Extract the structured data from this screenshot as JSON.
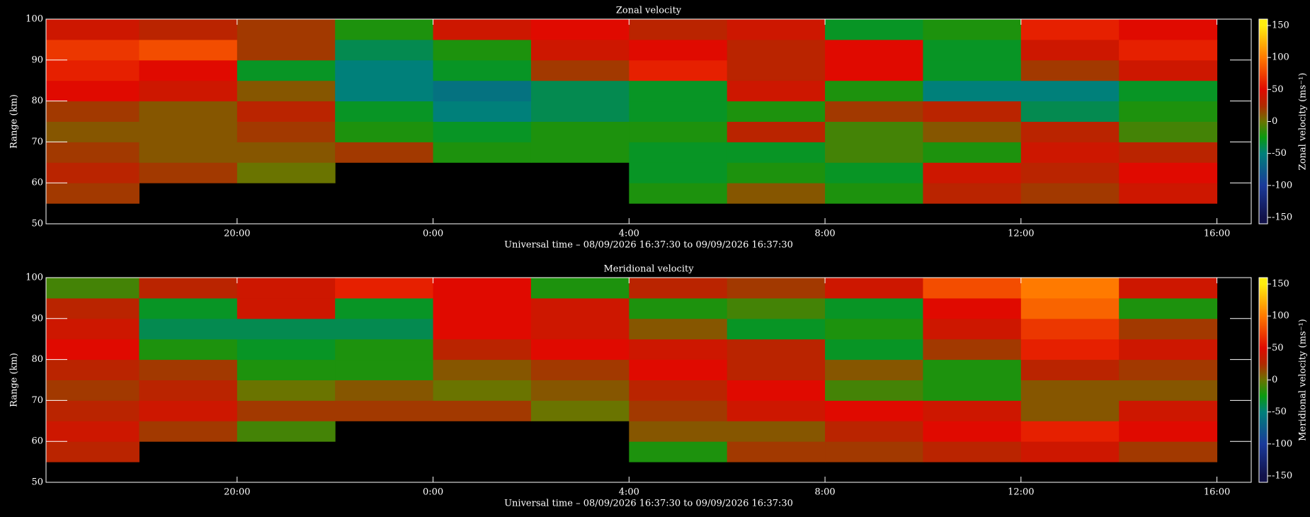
{
  "chart_data": [
    {
      "type": "heatmap",
      "title": "Zonal velocity",
      "xlabel": "Universal time – 08/09/2026 16:37:30 to 09/09/2026 16:37:30",
      "ylabel": "Range (km)",
      "clabel": "Zonal velocity (ms⁻¹)",
      "x": [
        17,
        19,
        21,
        23,
        25,
        27,
        29,
        31,
        33,
        35,
        37,
        39
      ],
      "y": [
        52.5,
        57.5,
        62.5,
        67.5,
        72.5,
        77.5,
        82.5,
        87.5,
        92.5,
        97.5
      ],
      "z": [
        [
          null,
          null,
          null,
          null,
          null,
          null,
          null,
          null,
          null,
          null,
          null,
          null
        ],
        [
          20,
          null,
          null,
          null,
          null,
          null,
          -20,
          10,
          -20,
          30,
          20,
          40
        ],
        [
          30,
          20,
          0,
          null,
          null,
          null,
          -30,
          -20,
          -30,
          40,
          30,
          50
        ],
        [
          20,
          10,
          10,
          20,
          -20,
          -20,
          -30,
          -30,
          -10,
          -20,
          40,
          30
        ],
        [
          10,
          10,
          20,
          -20,
          -30,
          -20,
          -20,
          30,
          -10,
          10,
          30,
          -10
        ],
        [
          20,
          10,
          30,
          -30,
          -50,
          -40,
          -30,
          -20,
          20,
          30,
          -40,
          -20
        ],
        [
          50,
          40,
          10,
          -50,
          -60,
          -40,
          -30,
          40,
          -20,
          -50,
          -50,
          -30
        ],
        [
          60,
          50,
          -30,
          -50,
          -30,
          20,
          60,
          30,
          50,
          -30,
          20,
          40
        ],
        [
          70,
          80,
          20,
          -40,
          -20,
          40,
          50,
          30,
          50,
          -30,
          40,
          60
        ],
        [
          40,
          30,
          20,
          -20,
          40,
          50,
          30,
          40,
          -30,
          -20,
          60,
          50
        ]
      ],
      "xlim": [
        16.1,
        40.7
      ],
      "xticks": [
        {
          "value": 20,
          "label": "20:00"
        },
        {
          "value": 24,
          "label": "0:00"
        },
        {
          "value": 28,
          "label": "4:00"
        },
        {
          "value": 32,
          "label": "8:00"
        },
        {
          "value": 36,
          "label": "12:00"
        },
        {
          "value": 40,
          "label": "16:00"
        }
      ],
      "ylim": [
        50,
        100
      ],
      "yticks": [
        50,
        60,
        70,
        80,
        90,
        100
      ],
      "clim": [
        -160,
        160
      ],
      "cticks": [
        -150,
        -100,
        -50,
        0,
        50,
        100,
        150
      ],
      "colorscale": [
        [
          -150,
          "#12124a"
        ],
        [
          -100,
          "#1a3a9a"
        ],
        [
          -50,
          "#00807a"
        ],
        [
          -25,
          "#0a9a10"
        ],
        [
          0,
          "#6a7400"
        ],
        [
          25,
          "#b02a00"
        ],
        [
          50,
          "#e00a00"
        ],
        [
          100,
          "#ff7a00"
        ],
        [
          150,
          "#ffee10"
        ]
      ]
    },
    {
      "type": "heatmap",
      "title": "Meridional velocity",
      "xlabel": "Universal time – 08/09/2026 16:37:30 to 09/09/2026 16:37:30",
      "ylabel": "Range (km)",
      "clabel": "Meridional velocity (ms⁻¹)",
      "x": [
        17,
        19,
        21,
        23,
        25,
        27,
        29,
        31,
        33,
        35,
        37,
        39
      ],
      "y": [
        52.5,
        57.5,
        62.5,
        67.5,
        72.5,
        77.5,
        82.5,
        87.5,
        92.5,
        97.5
      ],
      "z": [
        [
          null,
          null,
          null,
          null,
          null,
          null,
          null,
          null,
          null,
          null,
          null,
          null
        ],
        [
          30,
          null,
          null,
          null,
          null,
          null,
          -20,
          20,
          20,
          30,
          40,
          20
        ],
        [
          40,
          20,
          -10,
          null,
          null,
          null,
          10,
          10,
          30,
          50,
          60,
          50
        ],
        [
          30,
          40,
          20,
          20,
          20,
          0,
          20,
          40,
          50,
          40,
          10,
          40
        ],
        [
          20,
          30,
          0,
          10,
          0,
          10,
          30,
          50,
          -10,
          -20,
          10,
          10
        ],
        [
          30,
          20,
          -20,
          -20,
          10,
          20,
          50,
          30,
          10,
          -20,
          30,
          20
        ],
        [
          50,
          -20,
          -30,
          -20,
          30,
          50,
          40,
          30,
          -30,
          20,
          60,
          40
        ],
        [
          40,
          -40,
          -40,
          -40,
          50,
          40,
          10,
          -30,
          -20,
          40,
          70,
          20
        ],
        [
          30,
          -30,
          40,
          -30,
          50,
          40,
          -20,
          -10,
          -30,
          50,
          90,
          -20
        ],
        [
          -10,
          30,
          40,
          60,
          50,
          -20,
          30,
          20,
          40,
          80,
          100,
          40
        ]
      ],
      "xlim": [
        16.1,
        40.7
      ],
      "xticks": [
        {
          "value": 20,
          "label": "20:00"
        },
        {
          "value": 24,
          "label": "0:00"
        },
        {
          "value": 28,
          "label": "4:00"
        },
        {
          "value": 32,
          "label": "8:00"
        },
        {
          "value": 36,
          "label": "12:00"
        },
        {
          "value": 40,
          "label": "16:00"
        }
      ],
      "ylim": [
        50,
        100
      ],
      "yticks": [
        50,
        60,
        70,
        80,
        90,
        100
      ],
      "clim": [
        -160,
        160
      ],
      "cticks": [
        -150,
        -100,
        -50,
        0,
        50,
        100,
        150
      ],
      "colorscale": [
        [
          -150,
          "#12124a"
        ],
        [
          -100,
          "#1a3a9a"
        ],
        [
          -50,
          "#00807a"
        ],
        [
          -25,
          "#0a9a10"
        ],
        [
          0,
          "#6a7400"
        ],
        [
          25,
          "#b02a00"
        ],
        [
          50,
          "#e00a00"
        ],
        [
          100,
          "#ff7a00"
        ],
        [
          150,
          "#ffee10"
        ]
      ]
    }
  ]
}
